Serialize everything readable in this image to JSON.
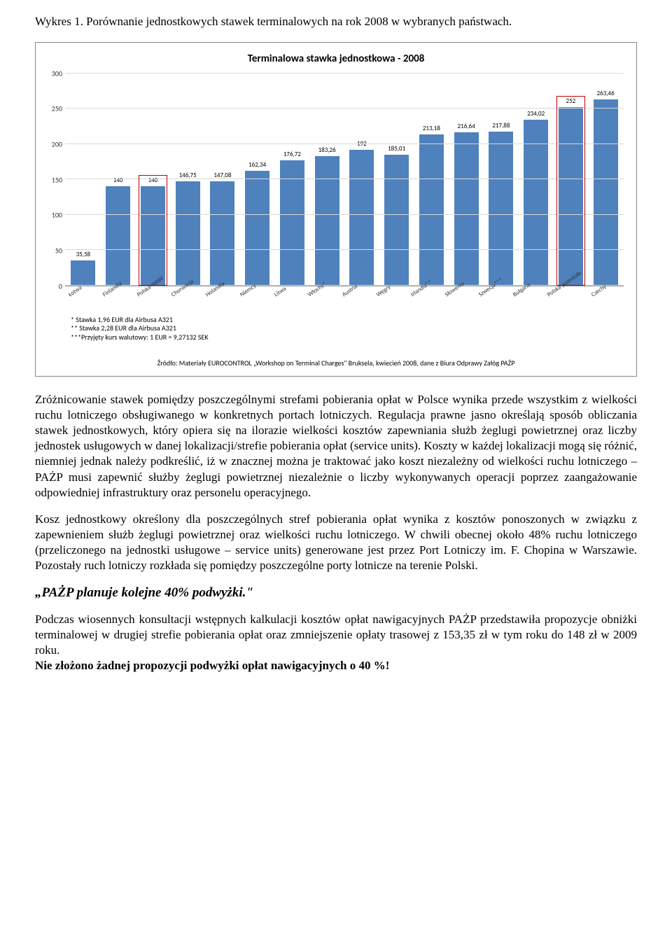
{
  "chart_caption": "Wykres 1. Porównanie jednostkowych stawek terminalowych na rok 2008 w wybranych państwach.",
  "chart": {
    "type": "bar",
    "title": "Terminalowa stawka jednostkowa - 2008",
    "bar_color": "#4f81bd",
    "grid_color": "#d9d9d9",
    "highlight_border_color": "#c00000",
    "background_color": "#ffffff",
    "ylim": [
      0,
      300
    ],
    "ytick_step": 50,
    "yticks": [
      "0",
      "50",
      "100",
      "150",
      "200",
      "250",
      "300"
    ],
    "categories": [
      "Łotwa",
      "Finlandia",
      "Polska-WAW",
      "Chorwacja",
      "Holandia",
      "Niemcy",
      "Litwa",
      "Włochy*",
      "Austria",
      "Węgry",
      "Irlandia**",
      "Słowenia",
      "Szwecja***",
      "Bułgaria",
      "Polska-pozostałe",
      "Czechy"
    ],
    "values": [
      35.58,
      140,
      140,
      146.75,
      147.08,
      162.34,
      176.72,
      183.26,
      192,
      185.01,
      213.18,
      216.64,
      217.88,
      234.02,
      252,
      263.46
    ],
    "value_labels": [
      "35,58",
      "140",
      "140",
      "146,75",
      "147,08",
      "162,34",
      "176,72",
      "183,26",
      "192",
      "185,01",
      "213,18",
      "216,64",
      "217,88",
      "234,02",
      "252",
      "263,46"
    ],
    "highlighted_indices": [
      2,
      14
    ]
  },
  "footnotes": {
    "line1": "* Stawka 1,96 EUR dla Airbusa A321",
    "line2": "** Stawka 2,28 EUR dla Airbusa A321",
    "line3": "***Przyjęty kurs walutowy: 1 EUR = 9,27132 SEK"
  },
  "chart_source": "Źródło: Materiały EUROCONTROL „Workshop on Terminal Charges\" Bruksela, kwiecień 2008, dane z Biura Odprawy Załóg PAŻP",
  "para1": "Zróżnicowanie stawek pomiędzy poszczególnymi strefami pobierania opłat w Polsce wynika przede wszystkim z wielkości ruchu lotniczego obsługiwanego w konkretnych portach lotniczych. Regulacja prawne jasno określają sposób obliczania stawek jednostkowych, który opiera się na ilorazie wielkości kosztów zapewniania służb żeglugi powietrznej oraz liczby jednostek usługowych w danej lokalizacji/strefie pobierania opłat (service units). Koszty w każdej lokalizacji mogą się różnić, niemniej jednak należy podkreślić, iż w znacznej można je traktować jako koszt niezależny od wielkości ruchu lotniczego – PAŻP musi zapewnić służby żeglugi powietrznej niezależnie o liczby wykonywanych operacji poprzez zaangażowanie odpowiedniej infrastruktury oraz personelu operacyjnego.",
  "para2": "Kosz jednostkowy określony dla poszczególnych stref pobierania opłat wynika z kosztów ponoszonych w związku z zapewnieniem służb żeglugi powietrznej oraz wielkości ruchu lotniczego. W chwili obecnej około 48% ruchu lotniczego (przeliczonego na jednostki usługowe – service units) generowane jest przez Port Lotniczy im. F. Chopina w Warszawie. Pozostały ruch lotniczy rozkłada się pomiędzy poszczególne porty lotnicze na terenie Polski.",
  "heading": "„PAŻP planuje kolejne 40% podwyżki.\"",
  "para3": "Podczas wiosennych konsultacji wstępnych kalkulacji kosztów opłat nawigacyjnych  PAŻP przedstawiła propozycje obniżki terminalowej w drugiej strefie pobierania opłat oraz zmniejszenie opłaty trasowej z 153,35 zł w tym roku do 148 zł w 2009 roku.",
  "para3_bold": "Nie złożono żadnej propozycji podwyżki opłat nawigacyjnych o 40 %!"
}
